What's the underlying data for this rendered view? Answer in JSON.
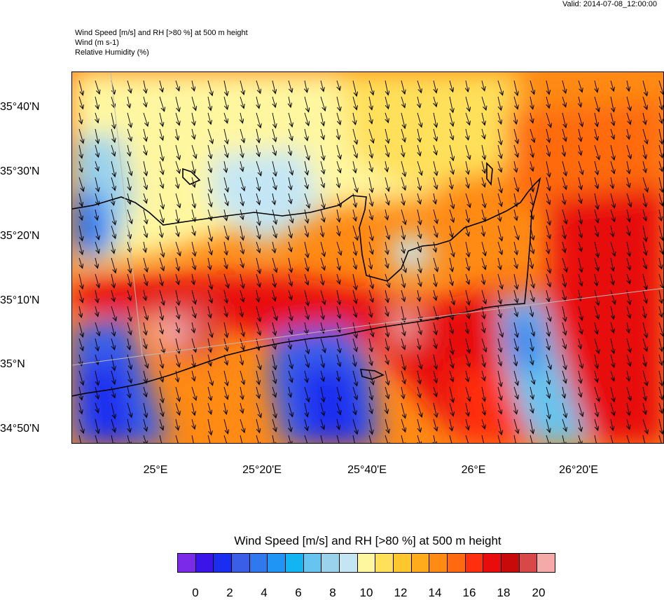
{
  "valid_text": "Valid: 2014-07-08_12:00:00",
  "header": {
    "line1": "Wind Speed [m/s] and RH [>80 %] at 500 m height",
    "line2": "Wind   (m s-1)",
    "line3": "Relative Humidity   (%)"
  },
  "map": {
    "lat_labels": [
      "35°40'N",
      "35°30'N",
      "35°20'N",
      "35°10'N",
      "35°N",
      "34°50'N"
    ],
    "lon_labels": [
      "25°E",
      "25°20'E",
      "25°40'E",
      "26°E",
      "26°20'E"
    ]
  },
  "colorbar": {
    "title": "Wind Speed [m/s] and RH [>80 %] at 500 m height",
    "colors": [
      "#7a2ae8",
      "#3a14e8",
      "#1a2ef0",
      "#3a5ee8",
      "#2f78ee",
      "#1f96f5",
      "#12b4f2",
      "#66c4ee",
      "#9ad2ec",
      "#c4e6f4",
      "#fff7a0",
      "#ffe05a",
      "#ffc72e",
      "#ffab1c",
      "#ff8a14",
      "#ff6a10",
      "#ff2e0e",
      "#e80c0c",
      "#c80a0a",
      "#d84848",
      "#f5aaaa"
    ],
    "ticks": [
      "0",
      "2",
      "4",
      "6",
      "8",
      "10",
      "12",
      "14",
      "16",
      "18",
      "20"
    ]
  }
}
